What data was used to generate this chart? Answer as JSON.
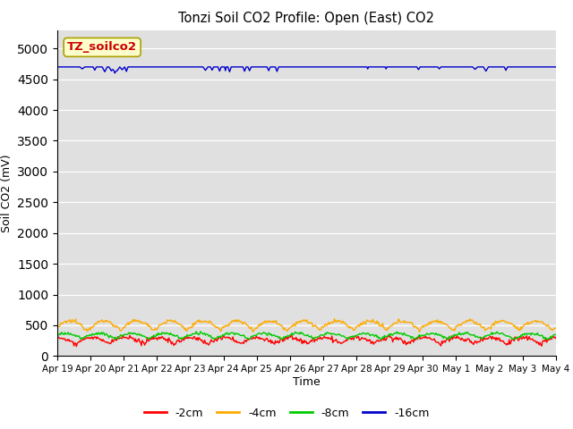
{
  "title": "Tonzi Soil CO2 Profile: Open (East) CO2",
  "ylabel": "Soil CO2 (mV)",
  "xlabel": "Time",
  "annotation_text": "TZ_soilco2",
  "annotation_bg": "#ffffcc",
  "annotation_border": "#aaa000",
  "ylim": [
    0,
    5300
  ],
  "yticks": [
    0,
    500,
    1000,
    1500,
    2000,
    2500,
    3000,
    3500,
    4000,
    4500,
    5000
  ],
  "background_color": "#e0e0e0",
  "legend_labels": [
    "-2cm",
    "-4cm",
    "-8cm",
    "-16cm"
  ],
  "legend_colors": [
    "#ff0000",
    "#ffaa00",
    "#00cc00",
    "#0000cc"
  ],
  "line_width": 1.0,
  "n_points": 600,
  "x_start": 0,
  "x_end": 15,
  "xtick_labels": [
    "Apr 19",
    "Apr 20",
    "Apr 21",
    "Apr 22",
    "Apr 23",
    "Apr 24",
    "Apr 25",
    "Apr 26",
    "Apr 27",
    "Apr 28",
    "Apr 29",
    "Apr 30",
    "May 1",
    "May 2",
    "May 3",
    "May 4"
  ],
  "xtick_positions": [
    0,
    1,
    2,
    3,
    4,
    5,
    6,
    7,
    8,
    9,
    10,
    11,
    12,
    13,
    14,
    15
  ]
}
